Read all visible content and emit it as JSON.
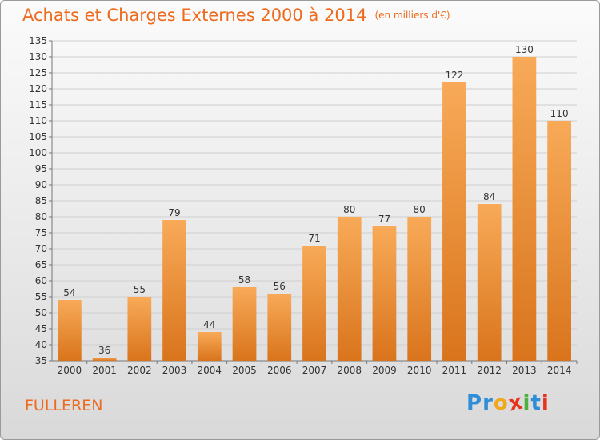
{
  "title": "Achats et Charges Externes 2000 à 2014",
  "unit": "(en milliers d'€)",
  "locality": "FULLEREN",
  "logo": {
    "letters": [
      "P",
      "r",
      "o",
      "x",
      "i",
      "t",
      "i"
    ],
    "colors": [
      "#2f8ed8",
      "#2f8ed8",
      "#f0a81c",
      "#e8321e",
      "#4fb040",
      "#2f8ed8",
      "#e8321e"
    ]
  },
  "colors": {
    "bar_top": "#f8aa58",
    "bar_bottom": "#d9741c",
    "accent": "#ee6a1e"
  },
  "chart_data": {
    "type": "bar",
    "categories": [
      "2000",
      "2001",
      "2002",
      "2003",
      "2004",
      "2005",
      "2006",
      "2007",
      "2008",
      "2009",
      "2010",
      "2011",
      "2012",
      "2013",
      "2014"
    ],
    "values": [
      54,
      36,
      55,
      79,
      44,
      58,
      56,
      71,
      80,
      77,
      80,
      122,
      84,
      130,
      110
    ],
    "ylim": [
      35,
      135
    ],
    "yticks": [
      35,
      40,
      45,
      50,
      55,
      60,
      65,
      70,
      75,
      80,
      85,
      90,
      95,
      100,
      105,
      110,
      115,
      120,
      125,
      130,
      135
    ],
    "grid": true,
    "data_labels": true
  }
}
